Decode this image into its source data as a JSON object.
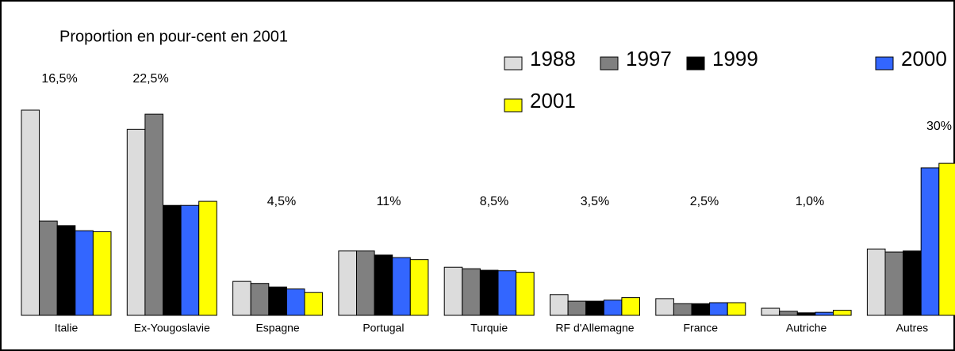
{
  "chart_data": {
    "type": "bar",
    "title": "Proportion en pour-cent en 2001",
    "categories": [
      "Italie",
      "Ex-Yougoslavie",
      "Espagne",
      "Portugal",
      "Turquie",
      "RF d'Allemagne",
      "France",
      "Autriche",
      "Autres"
    ],
    "series": [
      {
        "name": "1988",
        "color": "#dcdcdc",
        "values": [
          40.5,
          36.7,
          6.7,
          12.7,
          9.5,
          4.1,
          3.3,
          1.4,
          13.1
        ]
      },
      {
        "name": "1997",
        "color": "#808080",
        "values": [
          18.6,
          39.7,
          6.3,
          12.7,
          9.2,
          2.8,
          2.3,
          0.8,
          12.5
        ]
      },
      {
        "name": "1999",
        "color": "#000000",
        "values": [
          17.7,
          21.7,
          5.6,
          11.9,
          8.9,
          2.8,
          2.3,
          0.5,
          12.7
        ]
      },
      {
        "name": "2000",
        "color": "#3366ff",
        "values": [
          16.7,
          21.7,
          5.2,
          11.4,
          8.8,
          3.0,
          2.5,
          0.6,
          29.1
        ]
      },
      {
        "name": "2001",
        "color": "#ffff00",
        "values": [
          16.5,
          22.5,
          4.5,
          11,
          8.5,
          3.5,
          2.5,
          1.0,
          30
        ],
        "value_labels": [
          "16,5%",
          "22,5%",
          "4,5%",
          "11%",
          "8,5%",
          "3,5%",
          "2,5%",
          "1,0%",
          "30%"
        ]
      }
    ]
  }
}
